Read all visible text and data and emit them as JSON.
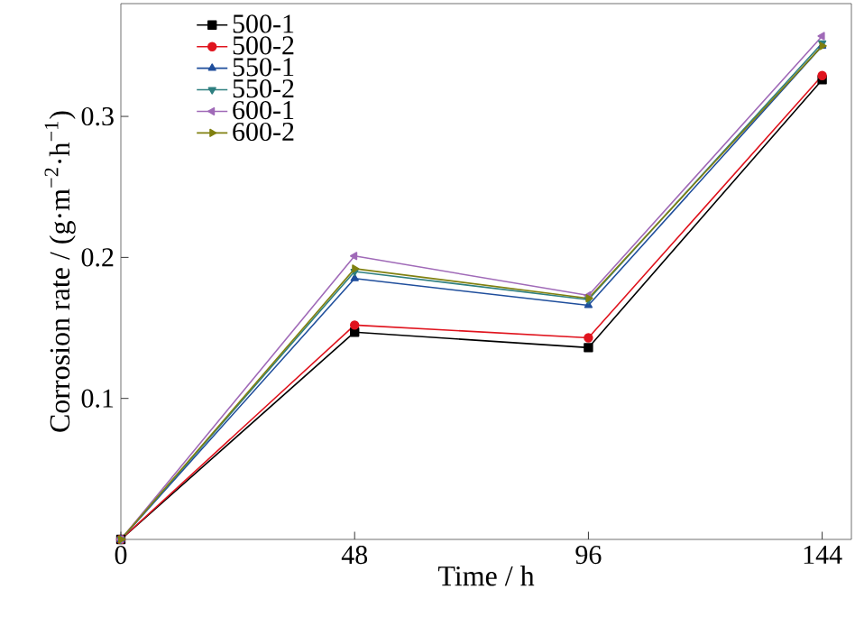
{
  "chart_data": {
    "type": "line",
    "xlabel": "Time / h",
    "ylabel": "Corrosion rate / (g·m$^{−2}$·h$^{−1}$)",
    "x": [
      0,
      48,
      96,
      144
    ],
    "series": [
      {
        "name": "500-1",
        "color": "#000000",
        "marker": "square",
        "values": [
          0,
          0.147,
          0.136,
          0.326
        ]
      },
      {
        "name": "500-2",
        "color": "#e0141e",
        "marker": "circle",
        "values": [
          0,
          0.152,
          0.143,
          0.329
        ]
      },
      {
        "name": "550-1",
        "color": "#1f4e9c",
        "marker": "triangle",
        "values": [
          0,
          0.185,
          0.166,
          0.35
        ]
      },
      {
        "name": "550-2",
        "color": "#2e7f80",
        "marker": "triangle-down",
        "values": [
          0,
          0.19,
          0.17,
          0.352
        ]
      },
      {
        "name": "600-1",
        "color": "#a06ab8",
        "marker": "triangle-left",
        "values": [
          0,
          0.201,
          0.173,
          0.357
        ]
      },
      {
        "name": "600-2",
        "color": "#808010",
        "marker": "triangle-right",
        "values": [
          0,
          0.192,
          0.171,
          0.35
        ]
      }
    ],
    "xlim": [
      0,
      150
    ],
    "ylim": [
      0,
      0.38
    ],
    "xticks": [
      0,
      48,
      96,
      144
    ],
    "yticks": [
      0.1,
      0.2,
      0.3
    ],
    "legend": "top left",
    "grid": false,
    "line_style": "solid"
  }
}
